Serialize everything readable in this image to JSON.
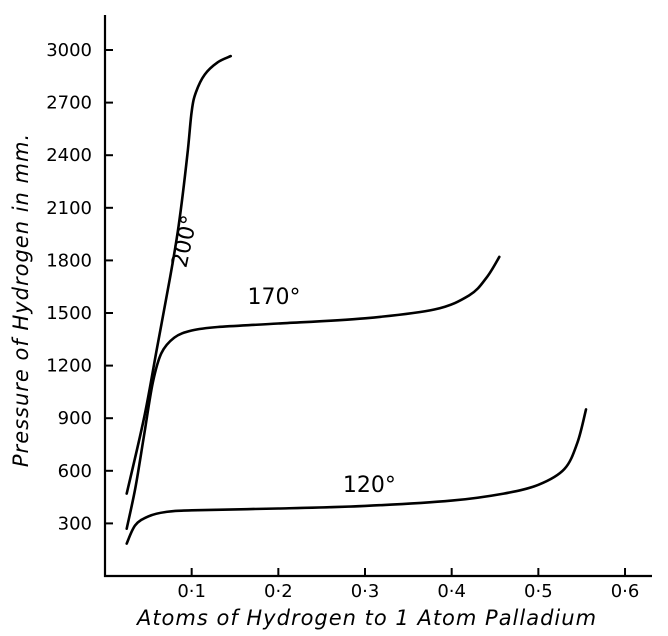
{
  "chart_data": {
    "type": "line",
    "xlabel": "Atoms of Hydrogen to 1 Atom Palladium",
    "ylabel": "Pressure of Hydrogen in mm.",
    "xlim": [
      0,
      0.6
    ],
    "ylim": [
      0,
      3000
    ],
    "x_ticks": [
      0.1,
      0.2,
      0.3,
      0.4,
      0.5,
      0.6
    ],
    "x_tick_labels": [
      "0·1",
      "0·2",
      "0·3",
      "0·4",
      "0·5",
      "0·6"
    ],
    "y_ticks": [
      300,
      600,
      900,
      1200,
      1500,
      1800,
      2100,
      2400,
      2700,
      3000
    ],
    "y_tick_labels": [
      "300",
      "600",
      "900",
      "1200",
      "1500",
      "1800",
      "2100",
      "2400",
      "2700",
      "3000"
    ],
    "grid": false,
    "legend": "none",
    "series": [
      {
        "name": "200°",
        "label_x": 0.1,
        "label_y": 1900,
        "x": [
          0.025,
          0.045,
          0.06,
          0.075,
          0.085,
          0.095,
          0.1,
          0.105,
          0.115,
          0.13,
          0.145
        ],
        "y": [
          470,
          900,
          1300,
          1700,
          2000,
          2400,
          2650,
          2760,
          2860,
          2930,
          2965
        ]
      },
      {
        "name": "170°",
        "label_x": 0.195,
        "label_y": 1550,
        "x": [
          0.025,
          0.035,
          0.045,
          0.055,
          0.065,
          0.08,
          0.1,
          0.13,
          0.2,
          0.3,
          0.38,
          0.42,
          0.44,
          0.455
        ],
        "y": [
          270,
          500,
          800,
          1100,
          1270,
          1360,
          1400,
          1420,
          1440,
          1470,
          1520,
          1600,
          1700,
          1820
        ]
      },
      {
        "name": "120°",
        "label_x": 0.305,
        "label_y": 480,
        "x": [
          0.025,
          0.035,
          0.05,
          0.07,
          0.1,
          0.2,
          0.3,
          0.4,
          0.46,
          0.5,
          0.53,
          0.545,
          0.555
        ],
        "y": [
          185,
          290,
          340,
          365,
          375,
          385,
          400,
          430,
          470,
          520,
          610,
          760,
          950
        ]
      }
    ]
  }
}
